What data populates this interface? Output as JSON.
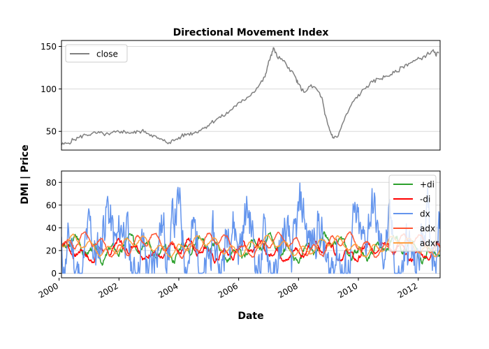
{
  "figure": {
    "title": "Directional Movement Index",
    "ylabel": "DMI | Price",
    "xlabel": "Date"
  },
  "chart_data": [
    {
      "type": "line",
      "title": "Directional Movement Index",
      "xlim": [
        2000.1,
        2012.75
      ],
      "ylim": [
        28,
        157
      ],
      "yticks": [
        50,
        100,
        150
      ],
      "grid": "horizontal",
      "legend": "top-left",
      "series": [
        {
          "name": "close",
          "color": "#808080",
          "points": [
            [
              2000.1,
              34
            ],
            [
              2000.3,
              36
            ],
            [
              2000.5,
              40
            ],
            [
              2000.7,
              43
            ],
            [
              2000.9,
              46
            ],
            [
              2001.1,
              47
            ],
            [
              2001.3,
              48
            ],
            [
              2001.5,
              47
            ],
            [
              2001.7,
              46
            ],
            [
              2001.9,
              49
            ],
            [
              2002.1,
              50
            ],
            [
              2002.3,
              49
            ],
            [
              2002.5,
              48
            ],
            [
              2002.7,
              50
            ],
            [
              2002.9,
              50
            ],
            [
              2003.1,
              46
            ],
            [
              2003.3,
              42
            ],
            [
              2003.5,
              39
            ],
            [
              2003.7,
              37
            ],
            [
              2003.9,
              40
            ],
            [
              2004.1,
              44
            ],
            [
              2004.3,
              47
            ],
            [
              2004.5,
              48
            ],
            [
              2004.7,
              51
            ],
            [
              2004.9,
              55
            ],
            [
              2005.1,
              60
            ],
            [
              2005.3,
              65
            ],
            [
              2005.5,
              68
            ],
            [
              2005.7,
              73
            ],
            [
              2005.9,
              80
            ],
            [
              2006.1,
              84
            ],
            [
              2006.3,
              90
            ],
            [
              2006.5,
              96
            ],
            [
              2006.7,
              104
            ],
            [
              2006.9,
              114
            ],
            [
              2007.0,
              128
            ],
            [
              2007.1,
              140
            ],
            [
              2007.2,
              148
            ],
            [
              2007.3,
              138
            ],
            [
              2007.5,
              133
            ],
            [
              2007.7,
              125
            ],
            [
              2007.9,
              115
            ],
            [
              2008.0,
              106
            ],
            [
              2008.2,
              96
            ],
            [
              2008.4,
              103
            ],
            [
              2008.6,
              101
            ],
            [
              2008.8,
              90
            ],
            [
              2008.9,
              70
            ],
            [
              2009.0,
              58
            ],
            [
              2009.1,
              48
            ],
            [
              2009.2,
              42
            ],
            [
              2009.35,
              45
            ],
            [
              2009.5,
              60
            ],
            [
              2009.7,
              75
            ],
            [
              2009.9,
              88
            ],
            [
              2010.1,
              95
            ],
            [
              2010.3,
              103
            ],
            [
              2010.5,
              108
            ],
            [
              2010.7,
              112
            ],
            [
              2010.9,
              114
            ],
            [
              2011.1,
              117
            ],
            [
              2011.3,
              120
            ],
            [
              2011.5,
              126
            ],
            [
              2011.7,
              130
            ],
            [
              2011.9,
              133
            ],
            [
              2012.1,
              136
            ],
            [
              2012.3,
              140
            ],
            [
              2012.5,
              145
            ],
            [
              2012.6,
              140
            ],
            [
              2012.7,
              142
            ]
          ]
        }
      ]
    },
    {
      "type": "line",
      "xlabel": "Date",
      "xlim": [
        2000.1,
        2012.75
      ],
      "ylim": [
        -4,
        90
      ],
      "yticks": [
        0,
        20,
        40,
        60,
        80
      ],
      "xticks": [
        2000,
        2002,
        2004,
        2006,
        2008,
        2010,
        2012
      ],
      "grid": "horizontal",
      "legend": "top-right",
      "series": [
        {
          "name": "+di",
          "color": "#2ca02c",
          "base": 22,
          "amp": 12,
          "seed": 3,
          "jitter": 0.4
        },
        {
          "name": "-di",
          "color": "#ff0000",
          "base": 20,
          "amp": 10,
          "seed": 7,
          "jitter": 0.4
        },
        {
          "name": "dx",
          "color": "#6495ed",
          "base": 25,
          "amp": 35,
          "seed": 11,
          "jitter": 1.0
        },
        {
          "name": "adx",
          "color": "#ff5533",
          "base": 25,
          "amp": 12,
          "seed": 19,
          "jitter": 0.15
        },
        {
          "name": "adxr",
          "color": "#ffa040",
          "base": 24,
          "amp": 10,
          "seed": 23,
          "jitter": 0.12
        }
      ]
    }
  ]
}
